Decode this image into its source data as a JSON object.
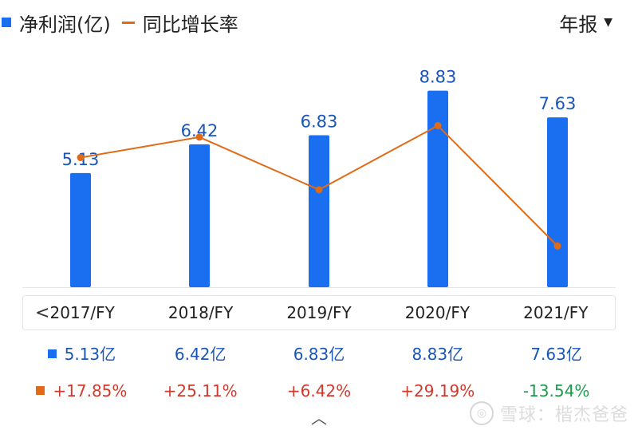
{
  "legend": {
    "bar_label": "净利润(亿)",
    "line_label": "同比增长率"
  },
  "period_select": {
    "label": "年报",
    "icon": "caret-down-icon"
  },
  "chart_data": {
    "type": "bar",
    "categories": [
      "2017/FY",
      "2018/FY",
      "2019/FY",
      "2020/FY",
      "2021/FY"
    ],
    "series": [
      {
        "name": "净利润(亿)",
        "type": "bar",
        "values": [
          5.13,
          6.42,
          6.83,
          8.83,
          7.63
        ],
        "color": "#1a6ff0"
      },
      {
        "name": "同比增长率",
        "type": "line",
        "values": [
          17.85,
          25.11,
          6.42,
          29.19,
          -13.54
        ],
        "color": "#e06a16"
      }
    ],
    "bar_labels": [
      "5.13",
      "6.42",
      "6.83",
      "8.83",
      "7.63"
    ],
    "grid": false
  },
  "table": {
    "prev_icon": "chevron-left-icon",
    "years": [
      "2017/FY",
      "2018/FY",
      "2019/FY",
      "2020/FY",
      "2021/FY"
    ],
    "profit": [
      "5.13亿",
      "6.42亿",
      "6.83亿",
      "8.83亿",
      "7.63亿"
    ],
    "growth": [
      "+17.85%",
      "+25.11%",
      "+6.42%",
      "+29.19%",
      "-13.54%"
    ]
  },
  "collapse_icon": "chevron-up-icon",
  "watermark": {
    "text": "雪球：楷杰爸爸"
  },
  "colors": {
    "bar": "#1a6ff0",
    "line": "#e06a16",
    "positive": "#d03a2c",
    "negative": "#1a9d4a",
    "value_text": "#1a56b8"
  }
}
